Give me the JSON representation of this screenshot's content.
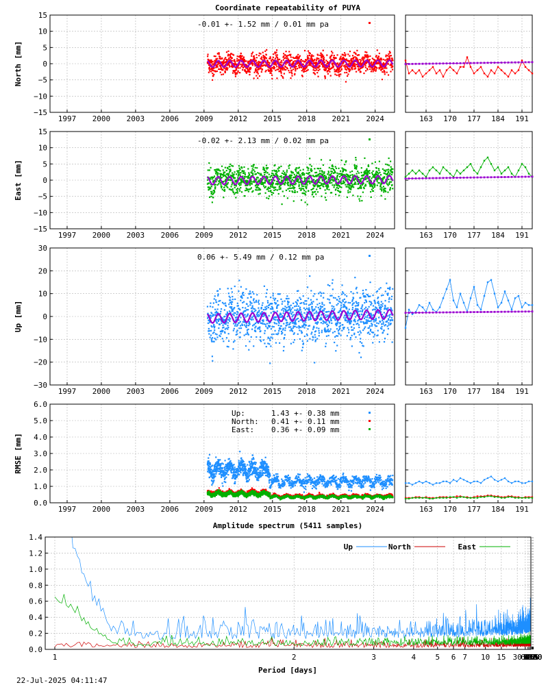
{
  "chart_data": [
    {
      "type": "scatter",
      "panel": "north",
      "title": "Coordinate repeatability of PUYA",
      "ylabel": "North [mm]",
      "annotation": "-0.01 +- 1.52 mm /  0.01 mm pa",
      "color": "#ff0000",
      "model_color": "#9a00d0",
      "xlim": [
        1995.5,
        2025.7
      ],
      "ylim": [
        -15,
        15
      ],
      "x_ticks": [
        1997,
        2000,
        2003,
        2006,
        2009,
        2012,
        2015,
        2018,
        2021,
        2024
      ],
      "y_ticks": [
        -15,
        -10,
        -5,
        0,
        5,
        10,
        15
      ],
      "data_start": 2009.3,
      "data_end": 2025.55,
      "scatter_sigma": 1.5,
      "seasonal_amplitude": 1.0,
      "trend": 0.01,
      "inset": {
        "xlim": [
          157,
          194
        ],
        "x_ticks": [
          163,
          170,
          177,
          184,
          191
        ],
        "ylim": [
          -15,
          15
        ],
        "values": [
          1,
          -3,
          -2,
          -3,
          -2,
          -4,
          -3,
          -2,
          -1,
          -3,
          -2,
          -4,
          -2,
          -1,
          -2,
          -3,
          -1,
          -1,
          2,
          -1,
          -3,
          -2,
          -1,
          -3,
          -4,
          -2,
          -3,
          -1,
          -2,
          -3,
          -4,
          -2,
          -3,
          -2,
          1,
          -1,
          -2,
          -3
        ]
      }
    },
    {
      "type": "scatter",
      "panel": "east",
      "ylabel": "East [mm]",
      "annotation": "-0.02 +- 2.13 mm /  0.02 mm pa",
      "color": "#00b000",
      "model_color": "#9a00d0",
      "xlim": [
        1995.5,
        2025.7
      ],
      "ylim": [
        -15,
        15
      ],
      "x_ticks": [
        1997,
        2000,
        2003,
        2006,
        2009,
        2012,
        2015,
        2018,
        2021,
        2024
      ],
      "y_ticks": [
        -15,
        -10,
        -5,
        0,
        5,
        10,
        15
      ],
      "data_start": 2009.3,
      "data_end": 2025.55,
      "scatter_sigma": 2.1,
      "seasonal_amplitude": 1.2,
      "trend": 0.02,
      "inset": {
        "xlim": [
          157,
          194
        ],
        "x_ticks": [
          163,
          170,
          177,
          184,
          191
        ],
        "ylim": [
          -15,
          15
        ],
        "values": [
          1,
          2,
          3,
          2,
          3,
          2,
          1,
          3,
          4,
          3,
          2,
          4,
          3,
          2,
          1,
          3,
          2,
          3,
          4,
          5,
          3,
          2,
          4,
          6,
          7,
          5,
          3,
          4,
          2,
          3,
          4,
          2,
          1,
          3,
          5,
          4,
          2,
          1
        ]
      }
    },
    {
      "type": "scatter",
      "panel": "up",
      "ylabel": "Up [mm]",
      "annotation": "0.06 +- 5.49 mm /  0.12 mm pa",
      "color": "#1e8fff",
      "model_color": "#9a00d0",
      "xlim": [
        1995.5,
        2025.7
      ],
      "ylim": [
        -30,
        30
      ],
      "x_ticks": [
        1997,
        2000,
        2003,
        2006,
        2009,
        2012,
        2015,
        2018,
        2021,
        2024
      ],
      "y_ticks": [
        -30,
        -20,
        -10,
        0,
        10,
        20,
        30
      ],
      "data_start": 2009.3,
      "data_end": 2025.55,
      "scatter_sigma": 5.5,
      "seasonal_amplitude": 2.0,
      "trend": 0.12,
      "inset": {
        "xlim": [
          157,
          194
        ],
        "x_ticks": [
          163,
          170,
          177,
          184,
          191
        ],
        "ylim": [
          -30,
          30
        ],
        "values": [
          -5,
          3,
          1,
          2,
          5,
          4,
          2,
          6,
          3,
          2,
          4,
          8,
          12,
          16,
          7,
          4,
          10,
          6,
          2,
          8,
          13,
          5,
          3,
          9,
          15,
          16,
          10,
          4,
          6,
          11,
          7,
          3,
          8,
          9,
          4,
          6,
          5,
          5
        ]
      }
    },
    {
      "type": "scatter",
      "panel": "rmse",
      "ylabel": "RMSE [mm]",
      "xlim": [
        1995.5,
        2025.7
      ],
      "ylim": [
        0.0,
        6.0
      ],
      "x_ticks": [
        1997,
        2000,
        2003,
        2006,
        2009,
        2012,
        2015,
        2018,
        2021,
        2024
      ],
      "y_ticks": [
        0.0,
        1.0,
        2.0,
        3.0,
        4.0,
        5.0,
        6.0
      ],
      "legend": [
        {
          "name": "Up:",
          "value": "1.43 +- 0.38 mm",
          "color": "#1e8fff"
        },
        {
          "name": "North:",
          "value": "0.41 +- 0.11 mm",
          "color": "#ff0000"
        },
        {
          "name": "East:",
          "value": "0.36 +- 0.09 mm",
          "color": "#00b000"
        }
      ],
      "series": [
        {
          "name": "Up",
          "color": "#1e8fff",
          "segments": [
            [
              2009.3,
              2014.8,
              2.0,
              0.25
            ],
            [
              2014.8,
              2025.55,
              1.3,
              0.15
            ]
          ]
        },
        {
          "name": "North",
          "color": "#ff0000",
          "segments": [
            [
              2009.3,
              2014.8,
              0.62,
              0.06
            ],
            [
              2014.8,
              2025.55,
              0.42,
              0.04
            ]
          ]
        },
        {
          "name": "East",
          "color": "#00b000",
          "segments": [
            [
              2009.3,
              2014.8,
              0.55,
              0.06
            ],
            [
              2014.8,
              2025.55,
              0.36,
              0.04
            ]
          ]
        }
      ],
      "inset": {
        "xlim": [
          157,
          194
        ],
        "x_ticks": [
          163,
          170,
          177,
          184,
          191
        ],
        "ylim": [
          0.0,
          6.0
        ],
        "series": [
          {
            "name": "Up",
            "color": "#1e8fff",
            "values": [
              1.2,
              1.2,
              1.1,
              1.2,
              1.3,
              1.2,
              1.3,
              1.2,
              1.1,
              1.2,
              1.2,
              1.3,
              1.3,
              1.2,
              1.4,
              1.3,
              1.5,
              1.4,
              1.3,
              1.2,
              1.3,
              1.3,
              1.2,
              1.4,
              1.5,
              1.6,
              1.4,
              1.3,
              1.4,
              1.5,
              1.3,
              1.2,
              1.3,
              1.3,
              1.2,
              1.2,
              1.3,
              1.3
            ]
          },
          {
            "name": "North",
            "color": "#ff0000",
            "values": [
              0.3,
              0.3,
              0.3,
              0.35,
              0.35,
              0.3,
              0.35,
              0.3,
              0.3,
              0.3,
              0.35,
              0.35,
              0.35,
              0.3,
              0.35,
              0.4,
              0.4,
              0.35,
              0.35,
              0.3,
              0.35,
              0.4,
              0.4,
              0.4,
              0.45,
              0.45,
              0.4,
              0.4,
              0.35,
              0.35,
              0.4,
              0.4,
              0.35,
              0.35,
              0.3,
              0.35,
              0.35,
              0.35
            ]
          },
          {
            "name": "East",
            "color": "#00b000",
            "values": [
              0.25,
              0.25,
              0.3,
              0.3,
              0.3,
              0.3,
              0.3,
              0.25,
              0.25,
              0.3,
              0.3,
              0.3,
              0.3,
              0.35,
              0.35,
              0.3,
              0.35,
              0.35,
              0.3,
              0.3,
              0.3,
              0.3,
              0.35,
              0.35,
              0.4,
              0.4,
              0.35,
              0.35,
              0.3,
              0.3,
              0.35,
              0.35,
              0.3,
              0.3,
              0.3,
              0.3,
              0.3,
              0.3
            ]
          }
        ]
      }
    },
    {
      "type": "line",
      "panel": "spectrum",
      "title": "Amplitude spectrum (5411 samples)",
      "xlabel": "Period [days]",
      "xscale": "reciprocal",
      "xlim": [
        1,
        8760
      ],
      "ylim": [
        0.0,
        1.4
      ],
      "x_ticks": [
        1,
        2,
        3,
        4,
        5,
        6,
        7,
        10,
        15,
        30,
        60,
        91,
        122,
        183,
        365,
        730,
        2190,
        4380,
        8760
      ],
      "y_ticks": [
        0.0,
        0.2,
        0.4,
        0.6,
        0.8,
        1.0,
        1.2,
        1.4
      ],
      "series": [
        {
          "name": "Up",
          "color": "#1e8fff",
          "base": 0.18,
          "noise": 0.12,
          "peaks": [
            [
              1.0,
              1.45
            ],
            [
              365,
              1.35
            ],
            [
              550,
              0.45
            ],
            [
              820,
              0.35
            ],
            [
              1100,
              0.85
            ],
            [
              1600,
              0.45
            ],
            [
              2190,
              0.15
            ],
            [
              3200,
              1.45
            ]
          ]
        },
        {
          "name": "North",
          "color": "#cc0000",
          "base": 0.03,
          "noise": 0.04,
          "peaks": [
            [
              365,
              0.55
            ],
            [
              500,
              0.2
            ],
            [
              900,
              0.3
            ],
            [
              1500,
              0.12
            ],
            [
              2190,
              0.14
            ],
            [
              6000,
              0.22
            ]
          ]
        },
        {
          "name": "East",
          "color": "#00b000",
          "base": 0.06,
          "noise": 0.05,
          "peaks": [
            [
              1.0,
              0.55
            ],
            [
              365,
              0.95
            ],
            [
              600,
              0.35
            ],
            [
              900,
              0.5
            ],
            [
              1600,
              0.72
            ],
            [
              2190,
              0.62
            ],
            [
              3200,
              0.3
            ],
            [
              6000,
              0.4
            ]
          ]
        }
      ]
    }
  ],
  "footer": {
    "timestamp": "22-Jul-2025 04:11:47"
  }
}
